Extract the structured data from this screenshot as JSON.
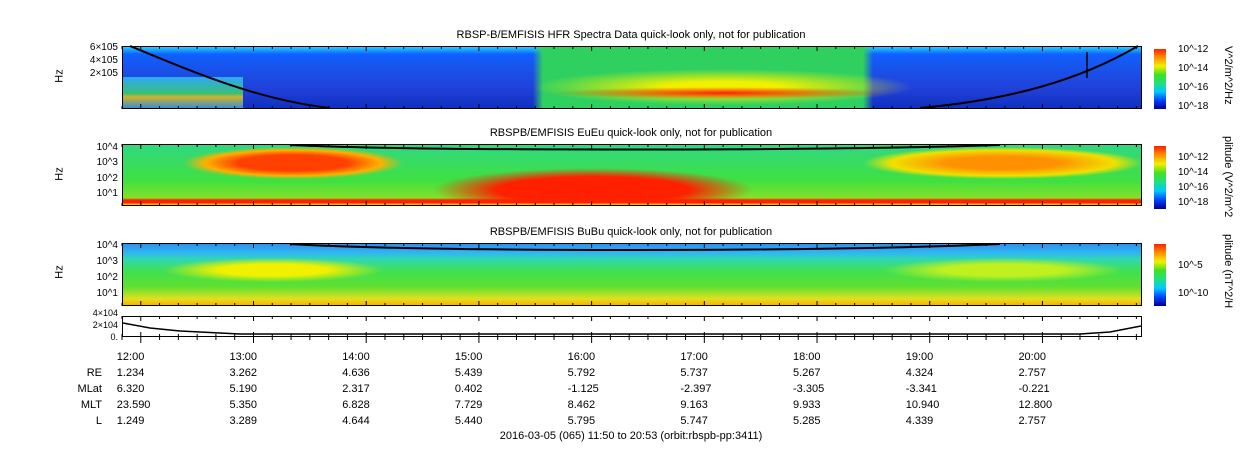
{
  "chart_data": [
    {
      "type": "heatmap",
      "title": "RBSP-B/EMFISIS  HFR Spectra Data quick-look only, not for publication",
      "ylabel": "Hz",
      "yticks": [
        "6×10",
        "4×10",
        "2×10",
        "5",
        "5",
        "5"
      ],
      "ytick_labels": [
        "6×105",
        "4×105",
        "2×105"
      ],
      "ytop": "5",
      "colorbar": {
        "label": "V^2/m^2/Hz",
        "ticks": [
          "10^-12",
          "10^-14",
          "10^-16",
          "10^-18"
        ]
      }
    },
    {
      "type": "heatmap",
      "title": "RBSPB/EMFISIS  EuEu quick-look only, not for publication",
      "ylabel": "Hz",
      "ytick_labels": [
        "10^4",
        "10^3",
        "10^2",
        "10^1"
      ],
      "colorbar": {
        "label": "plitude (V^2/m^2",
        "ticks": [
          "10^-12",
          "10^-14",
          "10^-16",
          "10^-18"
        ]
      }
    },
    {
      "type": "heatmap",
      "title": "RBSPB/EMFISIS  BuBu quick-look only, not for publication",
      "ylabel": "Hz",
      "ytick_labels": [
        "10^4",
        "10^3",
        "10^2",
        "10^1"
      ],
      "colorbar": {
        "label": "plitude (nT^2/H",
        "ticks": [
          "10^-5",
          "10^-10"
        ]
      }
    },
    {
      "type": "line",
      "ytick_labels": [
        "4×104",
        "2×104",
        "0."
      ],
      "ylim": [
        0,
        40000
      ]
    }
  ],
  "xaxis": {
    "ticks": [
      "12:00",
      "13:00",
      "14:00",
      "15:00",
      "16:00",
      "17:00",
      "18:00",
      "19:00",
      "20:00"
    ],
    "start_min": 710,
    "end_min": 1253
  },
  "ephemeris": {
    "rows": [
      {
        "label": "RE",
        "values": [
          "1.234",
          "3.262",
          "4.636",
          "5.439",
          "5.792",
          "5.737",
          "5.267",
          "4.324",
          "2.757"
        ]
      },
      {
        "label": "MLat",
        "values": [
          "6.320",
          "5.190",
          "2.317",
          "0.402",
          "-1.125",
          "-2.397",
          "-3.305",
          "-3.341",
          "-0.221"
        ]
      },
      {
        "label": "MLT",
        "values": [
          "23.590",
          "5.350",
          "6.828",
          "7.729",
          "8.462",
          "9.163",
          "9.933",
          "10.940",
          "12.800"
        ]
      },
      {
        "label": "L",
        "values": [
          "1.249",
          "3.289",
          "4.644",
          "5.440",
          "5.795",
          "5.747",
          "5.285",
          "4.339",
          "2.757"
        ]
      }
    ]
  },
  "footer": "2016-03-05 (065) 11:50 to 20:53 (orbit:rbspb-pp:3411)"
}
